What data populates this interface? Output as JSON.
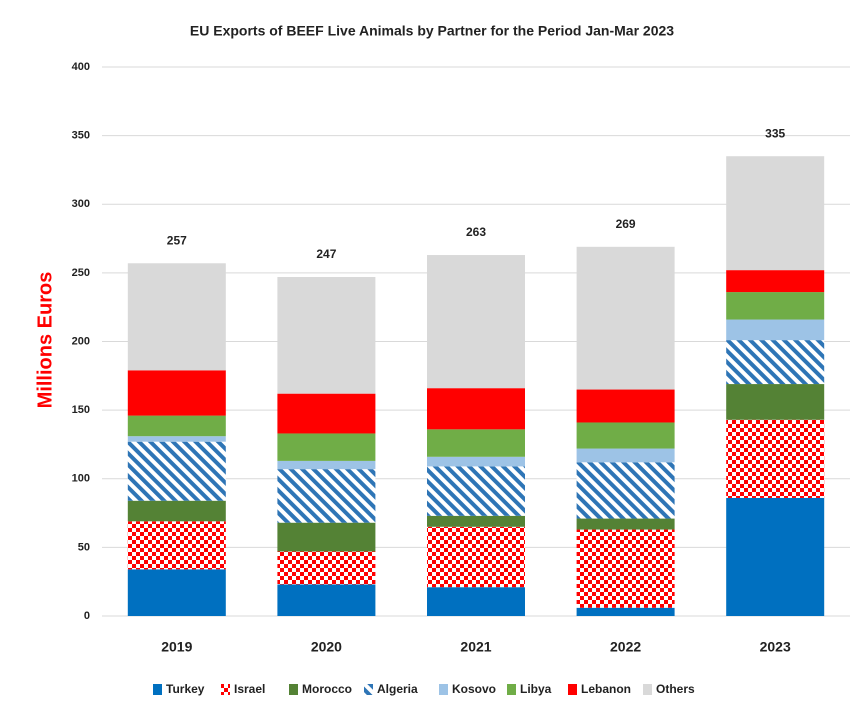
{
  "chart_data": {
    "type": "stacked_bar",
    "title": "EU Exports of BEEF Live Animals by Partner for the Period Jan-Mar 2023",
    "y_label": "Millions Euros",
    "categories": [
      "2019",
      "2020",
      "2021",
      "2022",
      "2023"
    ],
    "series": [
      {
        "name": "Turkey",
        "color": "#0070c0",
        "values": [
          34,
          23,
          21,
          6,
          86
        ]
      },
      {
        "name": "Israel",
        "color": "#ff0000",
        "pattern": "checker",
        "values": [
          35,
          24,
          44,
          57,
          57
        ]
      },
      {
        "name": "Morocco",
        "color": "#548235",
        "values": [
          15,
          21,
          8,
          8,
          26
        ]
      },
      {
        "name": "Algeria",
        "color": "#2e75b6",
        "pattern": "diagonal",
        "values": [
          43,
          39,
          36,
          41,
          32
        ]
      },
      {
        "name": "Kosovo",
        "color": "#9dc3e6",
        "values": [
          4,
          6,
          7,
          10,
          15
        ]
      },
      {
        "name": "Libya",
        "color": "#70ad47",
        "values": [
          15,
          20,
          20,
          19,
          20
        ]
      },
      {
        "name": "Lebanon",
        "color": "#ff0000",
        "values": [
          33,
          29,
          30,
          24,
          16
        ]
      },
      {
        "name": "Others",
        "color": "#d9d9d9",
        "values": [
          78,
          85,
          97,
          104,
          83
        ]
      }
    ],
    "totals": [
      257,
      247,
      263,
      269,
      335
    ],
    "ylim": [
      0,
      400
    ],
    "yticks": [
      0,
      50,
      100,
      150,
      200,
      250,
      300,
      350,
      400
    ],
    "grid": true,
    "legend": "bottom"
  }
}
